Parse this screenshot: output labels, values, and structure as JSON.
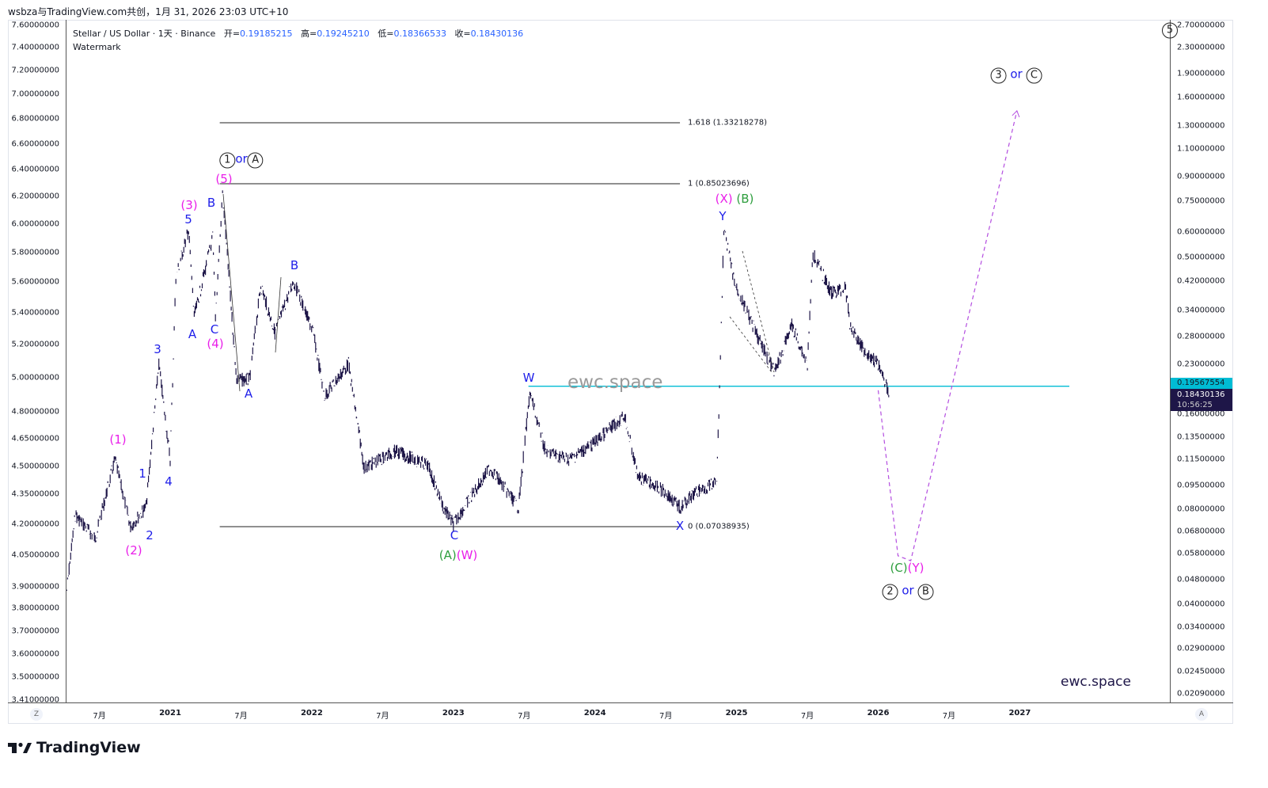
{
  "credit": "wsbza与TradingView.com共创，1月 31, 2026 23:03 UTC+10",
  "legend": {
    "symbol": "Stellar / US Dollar · 1天 · Binance",
    "open_label": "开=",
    "open": "0.19185215",
    "high_label": "高=",
    "high": "0.19245210",
    "low_label": "低=",
    "low": "0.18366533",
    "close_label": "收=",
    "close": "0.18430136",
    "watermark_label": "Watermark"
  },
  "left_axis": [
    "7.60000000",
    "7.40000000",
    "7.20000000",
    "7.00000000",
    "6.80000000",
    "6.60000000",
    "6.40000000",
    "6.20000000",
    "6.00000000",
    "5.80000000",
    "5.60000000",
    "5.40000000",
    "5.20000000",
    "5.00000000",
    "4.80000000",
    "4.65000000",
    "4.50000000",
    "4.35000000",
    "4.20000000",
    "4.05000000",
    "3.90000000",
    "3.80000000",
    "3.70000000",
    "3.60000000",
    "3.50000000",
    "3.41000000"
  ],
  "right_axis": [
    "2.70000000",
    "2.30000000",
    "1.90000000",
    "1.60000000",
    "1.30000000",
    "1.10000000",
    "0.90000000",
    "0.75000000",
    "0.60000000",
    "0.50000000",
    "0.42000000",
    "0.34000000",
    "0.28000000",
    "0.23000000",
    "0.16000000",
    "0.13500000",
    "0.11500000",
    "0.09500000",
    "0.08000000",
    "0.06800000",
    "0.05800000",
    "0.04800000",
    "0.04000000",
    "0.03400000",
    "0.02900000",
    "0.02450000",
    "0.02090000"
  ],
  "x_axis": [
    "7月",
    "2021",
    "7月",
    "2022",
    "7月",
    "2023",
    "7月",
    "2024",
    "7月",
    "2025",
    "7月",
    "2026",
    "7月",
    "2027"
  ],
  "axis_buttons": {
    "left": "Z",
    "right": "A"
  },
  "price_line": {
    "value": "0.19567554",
    "color": "#00bcd4"
  },
  "last_price": {
    "value": "0.18430136",
    "countdown": "10:56:25"
  },
  "fib": [
    {
      "label": "1.618 (1.33218278)",
      "level": 1.618
    },
    {
      "label": "1 (0.85023696)",
      "level": 1
    },
    {
      "label": "0 (0.07038935)",
      "level": 0
    }
  ],
  "labels": {
    "l1": "(1)",
    "l2": "(2)",
    "l3": "(3)",
    "l4": "(4)",
    "l5": "(5)",
    "n1": "1",
    "n2": "2",
    "n3": "3",
    "n4": "4",
    "n5": "5",
    "A1": "A",
    "B1": "B",
    "C1": "C",
    "A2": "A",
    "A3": "A",
    "B2": "B",
    "C2": "C",
    "W": "W",
    "X": "X",
    "Y": "Y",
    "AW_a": "(A)",
    "AW_w": "(W)",
    "XB_x": "(X)",
    "XB_b": "(B)",
    "CY_c": "(C)",
    "CY_y": "(Y)",
    "or": "or",
    "c1": "1",
    "cA": "A",
    "c2": "2",
    "cB": "B",
    "c3": "3",
    "cC": "C",
    "c5": "5"
  },
  "watermark": "ewc.space",
  "brand": "ewc.space",
  "logo": "TradingView",
  "chart_data": {
    "type": "line",
    "title": "Stellar / US Dollar · 1天 · Binance",
    "yscale": "log",
    "ylim": [
      0.0209,
      2.7
    ],
    "xlim": [
      2020.27,
      2027.35
    ],
    "series": [
      {
        "name": "XLMUSD",
        "color": "#1e1648",
        "x": [
          2020.27,
          2020.33,
          2020.47,
          2020.61,
          2020.72,
          2020.83,
          2020.92,
          2021.0,
          2021.04,
          2021.13,
          2021.17,
          2021.3,
          2021.32,
          2021.37,
          2021.47,
          2021.56,
          2021.64,
          2021.74,
          2021.87,
          2022.01,
          2022.09,
          2022.26,
          2022.37,
          2022.59,
          2022.82,
          2022.93,
          2023.0,
          2023.15,
          2023.26,
          2023.46,
          2023.54,
          2023.65,
          2023.82,
          2023.99,
          2024.21,
          2024.3,
          2024.49,
          2024.6,
          2024.72,
          2024.86,
          2024.88,
          2024.91,
          2024.99,
          2025.16,
          2025.27,
          2025.39,
          2025.5,
          2025.54,
          2025.67,
          2025.77,
          2025.8,
          2025.89,
          2026.0,
          2026.08
        ],
        "y": [
          0.0445,
          0.0768,
          0.0646,
          0.1148,
          0.0705,
          0.0814,
          0.2296,
          0.1148,
          0.432,
          0.61,
          0.324,
          0.577,
          0.324,
          0.79,
          0.205,
          0.205,
          0.408,
          0.289,
          0.42,
          0.289,
          0.182,
          0.23,
          0.108,
          0.122,
          0.11,
          0.081,
          0.0717,
          0.0913,
          0.108,
          0.081,
          0.187,
          0.122,
          0.115,
          0.129,
          0.158,
          0.102,
          0.091,
          0.081,
          0.091,
          0.0967,
          0.193,
          0.61,
          0.408,
          0.273,
          0.216,
          0.306,
          0.23,
          0.514,
          0.385,
          0.4,
          0.306,
          0.258,
          0.23,
          0.1843
        ]
      },
      {
        "name": "projection",
        "color": "#b44ee0",
        "dashed": true,
        "x": [
          2026.0,
          2026.14,
          2026.23,
          2026.98
        ],
        "y": [
          0.19,
          0.057,
          0.055,
          1.45
        ]
      }
    ],
    "hlines": [
      {
        "value": 1.33218278,
        "from": 2021.35,
        "to": 2024.6
      },
      {
        "value": 0.85023696,
        "from": 2021.35,
        "to": 2024.6
      },
      {
        "value": 0.07038935,
        "from": 2021.35,
        "to": 2024.6
      },
      {
        "value": 0.19567554,
        "from": 2023.53,
        "to": 2027.35
      }
    ]
  }
}
